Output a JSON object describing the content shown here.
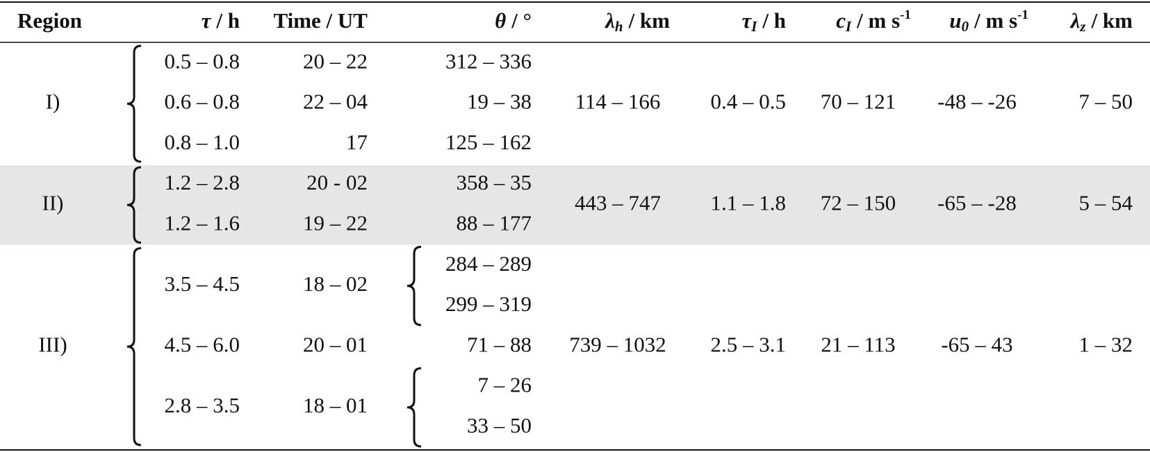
{
  "table": {
    "header": [
      {
        "text": "Region"
      },
      {
        "symbol": "τ",
        "rest": "/ h"
      },
      {
        "text": "Time / UT"
      },
      {
        "symbol": "θ",
        "rest": "/ °"
      },
      {
        "symbol": "λ",
        "sub": "h",
        "rest": "/ km"
      },
      {
        "symbol": "τ",
        "sub": "I",
        "rest": "/ h"
      },
      {
        "symbol": "c",
        "sub": "I",
        "rest": "/ m s",
        "sup": "-1"
      },
      {
        "symbol": "u",
        "sub": "0",
        "rest": "/ m s",
        "sup": "-1"
      },
      {
        "symbol": "λ",
        "sub": "z",
        "rest": "/ km"
      }
    ],
    "regions": [
      {
        "label": "I)",
        "rows": [
          {
            "tau": "0.5 – 0.8",
            "time": "20 – 22",
            "theta": [
              "312 – 336"
            ]
          },
          {
            "tau": "0.6 – 0.8",
            "time": "22 – 04",
            "theta": [
              "19 – 38"
            ]
          },
          {
            "tau": "0.8 – 1.0",
            "time": "17",
            "theta": [
              "125 – 162"
            ]
          }
        ],
        "lambda_h": "114 – 166",
        "tau_I": "0.4 – 0.5",
        "c_I": "70 – 121",
        "u_0": "-48 – -26",
        "lambda_z": "7 – 50"
      },
      {
        "label": "II)",
        "rows": [
          {
            "tau": "1.2 – 2.8",
            "time": "20 - 02",
            "theta": [
              "358 – 35"
            ]
          },
          {
            "tau": "1.2 – 1.6",
            "time": "19 – 22",
            "theta": [
              "88 – 177"
            ]
          }
        ],
        "lambda_h": "443 – 747",
        "tau_I": "1.1 – 1.8",
        "c_I": "72 – 150",
        "u_0": "-65 – -28",
        "lambda_z": "5 – 54"
      },
      {
        "label": "III)",
        "rows": [
          {
            "tau": "3.5 – 4.5",
            "time": "18 – 02",
            "theta": [
              "284 – 289",
              "299 – 319"
            ]
          },
          {
            "tau": "4.5 – 6.0",
            "time": "20 – 01",
            "theta": [
              "71 – 88"
            ]
          },
          {
            "tau": "2.8 – 3.5",
            "time": "18 – 01",
            "theta": [
              "7 – 26",
              "33 – 50"
            ]
          }
        ],
        "lambda_h": "739 – 1032",
        "tau_I": "2.5 – 3.1",
        "c_I": "21 – 113",
        "u_0": "-65 – 43",
        "lambda_z": "1 – 32"
      }
    ]
  }
}
